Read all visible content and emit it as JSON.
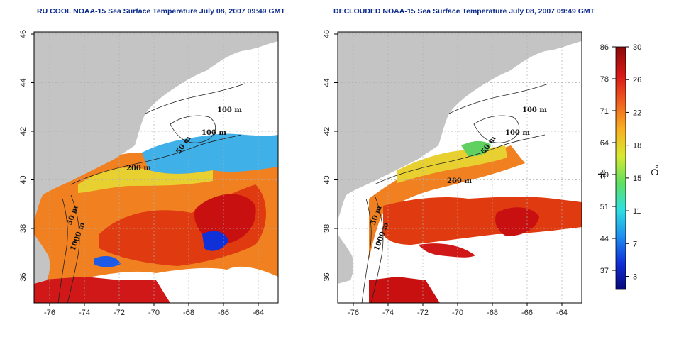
{
  "left_map": {
    "title": "RU COOL NOAA-15 Sea Surface Temperature July 08, 2007 09:49 GMT",
    "contour_labels": [
      "100 m",
      "100 m",
      "50 m",
      "200 m",
      "50 m",
      "1000 m"
    ]
  },
  "right_map": {
    "title": "DECLOUDED NOAA-15 Sea Surface Temperature July 08, 2007 09:49 GMT",
    "contour_labels": [
      "100 m",
      "100 m",
      "50 m",
      "200 m",
      "50 m",
      "1000 m"
    ]
  },
  "axes": {
    "lon_ticks": [
      "-76",
      "-74",
      "-72",
      "-70",
      "-68",
      "-66",
      "-64"
    ],
    "lat_ticks": [
      "46",
      "44",
      "42",
      "40",
      "38",
      "36"
    ]
  },
  "colorbar": {
    "fahrenheit_label": "°F",
    "celsius_label": "°C",
    "f_ticks": [
      "86",
      "78",
      "71",
      "64",
      "59",
      "51",
      "44",
      "37"
    ],
    "c_ticks": [
      "30",
      "26",
      "22",
      "18",
      "15",
      "11",
      "7",
      "3"
    ],
    "colors": [
      "#08087a",
      "#1030d8",
      "#1e90f0",
      "#30e0e0",
      "#60e060",
      "#d8e830",
      "#f8b020",
      "#f06020",
      "#d81818",
      "#8a0808"
    ]
  },
  "colors": {
    "land": "#c4c4c4",
    "title": "#0b2a8a",
    "grid": "#b0b0b0"
  }
}
